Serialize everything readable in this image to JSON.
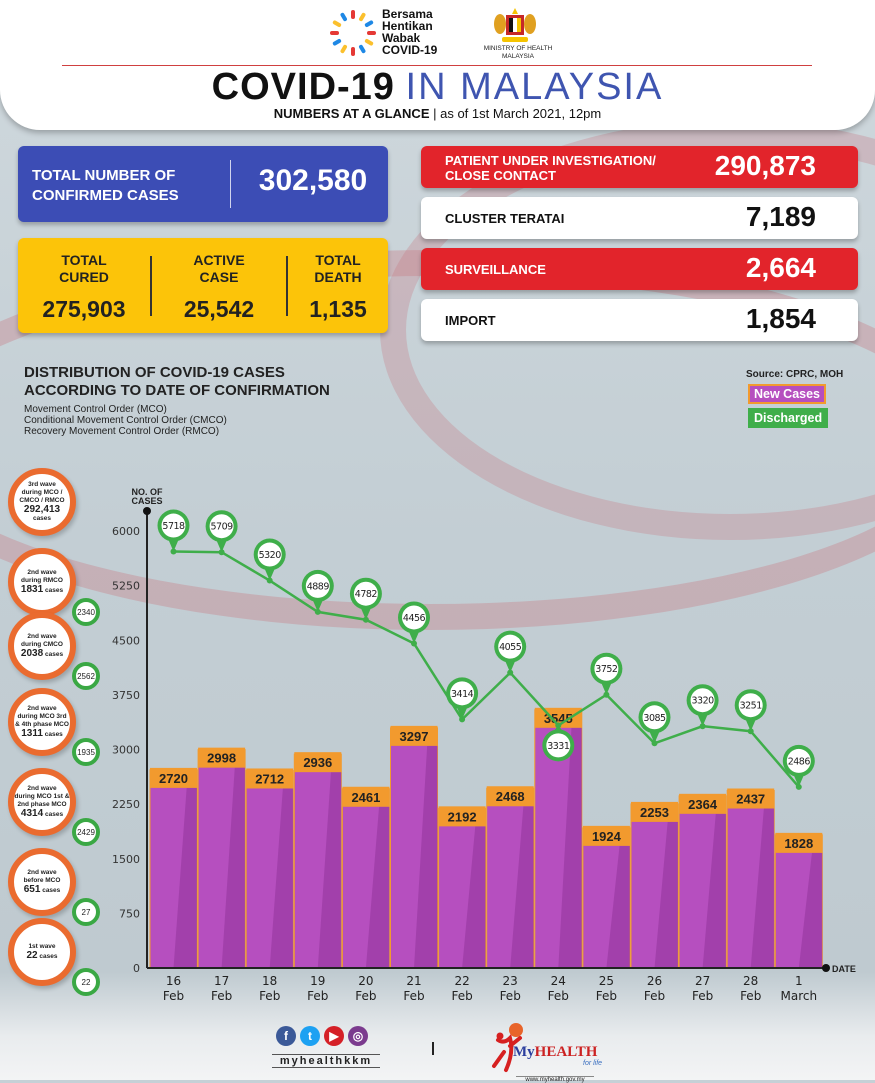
{
  "header": {
    "campaign_logo_text": [
      "Bersama",
      "Hentikan",
      "Wabak",
      "COVID-19"
    ],
    "ministry_text": [
      "MINISTRY OF HEALTH",
      "MALAYSIA"
    ],
    "title_bold": "COVID-19",
    "title_light": "IN MALAYSIA",
    "subtitle_bold": "NUMBERS AT A GLANCE",
    "subtitle_rest": " | as of 1st March 2021, 12pm"
  },
  "summary": {
    "confirmed_label": [
      "TOTAL NUMBER OF",
      "CONFIRMED CASES"
    ],
    "confirmed_value": "302,580",
    "cured_label": [
      "TOTAL",
      "CURED"
    ],
    "cured_value": "275,903",
    "active_label": [
      "ACTIVE",
      "CASE"
    ],
    "active_value": "25,542",
    "death_label": [
      "TOTAL",
      "DEATH"
    ],
    "death_value": "1,135"
  },
  "categories": [
    {
      "label": [
        "PATIENT UNDER INVESTIGATION/",
        "CLOSE CONTACT"
      ],
      "value": "290,873",
      "style": "red"
    },
    {
      "label": [
        "CLUSTER TERATAI"
      ],
      "value": "7,189",
      "style": "white"
    },
    {
      "label": [
        "SURVEILLANCE"
      ],
      "value": "2,664",
      "style": "red"
    },
    {
      "label": [
        "IMPORT"
      ],
      "value": "1,854",
      "style": "white"
    }
  ],
  "chart_section": {
    "title": [
      "DISTRIBUTION OF COVID-19 CASES",
      "ACCORDING TO DATE OF CONFIRMATION"
    ],
    "notes": [
      "Movement Control Order (MCO)",
      "Conditional Movement Control Order (CMCO)",
      "Recovery Movement Control Order (RMCO)"
    ],
    "source": "Source: CPRC, MOH"
  },
  "waves": [
    {
      "lines": [
        "3rd wave",
        "during MCO /",
        "CMCO / RMCO"
      ],
      "number": "292,413",
      "suffix": "cases",
      "discharged": null
    },
    {
      "lines": [
        "2nd wave",
        "during RMCO"
      ],
      "number": "1831",
      "suffix": "cases",
      "discharged": "2340"
    },
    {
      "lines": [
        "2nd wave",
        "during CMCO"
      ],
      "number": "2038",
      "suffix": "cases",
      "discharged": "2562"
    },
    {
      "lines": [
        "2nd wave",
        "during MCO 3rd",
        "& 4th phase MCO"
      ],
      "number": "1311",
      "suffix": "cases",
      "discharged": "1935"
    },
    {
      "lines": [
        "2nd wave",
        "during MCO 1st &",
        "2nd phase MCO"
      ],
      "number": "4314",
      "suffix": "cases",
      "discharged": "2429"
    },
    {
      "lines": [
        "2nd wave",
        "before MCO"
      ],
      "number": "651",
      "suffix": "cases",
      "discharged": "27"
    },
    {
      "lines": [
        "1st wave"
      ],
      "number": "22",
      "suffix": "cases",
      "discharged": "22"
    }
  ],
  "footer": {
    "social_handle": "myhealthkkm",
    "social_icons": [
      "facebook-icon",
      "twitter-icon",
      "youtube-icon",
      "instagram-icon"
    ],
    "brand_my": "My",
    "brand_health": "HEALTH",
    "tagline": "for life",
    "url": "www.myhealth.gov.my"
  },
  "colors": {
    "blue_box": "#3c4db5",
    "yellow_box": "#fcc409",
    "red_box": "#e2242b",
    "bar": "#b64fbf",
    "bar_shade": "#9a3aa3",
    "bar_label_bg": "#f29a2e",
    "line": "#3fae4a",
    "wave_ring": "#ea6b2f"
  },
  "chart_data": {
    "type": "bar",
    "title": "DISTRIBUTION OF COVID-19 CASES ACCORDING TO DATE OF CONFIRMATION",
    "xlabel": "DATE",
    "ylabel": "NO. OF CASES",
    "ylim": [
      0,
      6000
    ],
    "yticks": [
      0,
      750,
      1500,
      2250,
      3000,
      3750,
      4500,
      5250,
      6000
    ],
    "categories": [
      [
        "16",
        "Feb"
      ],
      [
        "17",
        "Feb"
      ],
      [
        "18",
        "Feb"
      ],
      [
        "19",
        "Feb"
      ],
      [
        "20",
        "Feb"
      ],
      [
        "21",
        "Feb"
      ],
      [
        "22",
        "Feb"
      ],
      [
        "23",
        "Feb"
      ],
      [
        "24",
        "Feb"
      ],
      [
        "25",
        "Feb"
      ],
      [
        "26",
        "Feb"
      ],
      [
        "27",
        "Feb"
      ],
      [
        "28",
        "Feb"
      ],
      [
        "1",
        "March"
      ]
    ],
    "legend": [
      "New Cases",
      "Discharged"
    ],
    "legend_position": "top-right",
    "series": [
      {
        "name": "New Cases",
        "type": "bar",
        "values": [
          2720,
          2998,
          2712,
          2936,
          2461,
          3297,
          2192,
          2468,
          3545,
          1924,
          2253,
          2364,
          2437,
          1828
        ]
      },
      {
        "name": "Discharged",
        "type": "line",
        "values": [
          5718,
          5709,
          5320,
          4889,
          4782,
          4456,
          3414,
          4055,
          3331,
          3752,
          3085,
          3320,
          3251,
          2486
        ]
      }
    ]
  }
}
